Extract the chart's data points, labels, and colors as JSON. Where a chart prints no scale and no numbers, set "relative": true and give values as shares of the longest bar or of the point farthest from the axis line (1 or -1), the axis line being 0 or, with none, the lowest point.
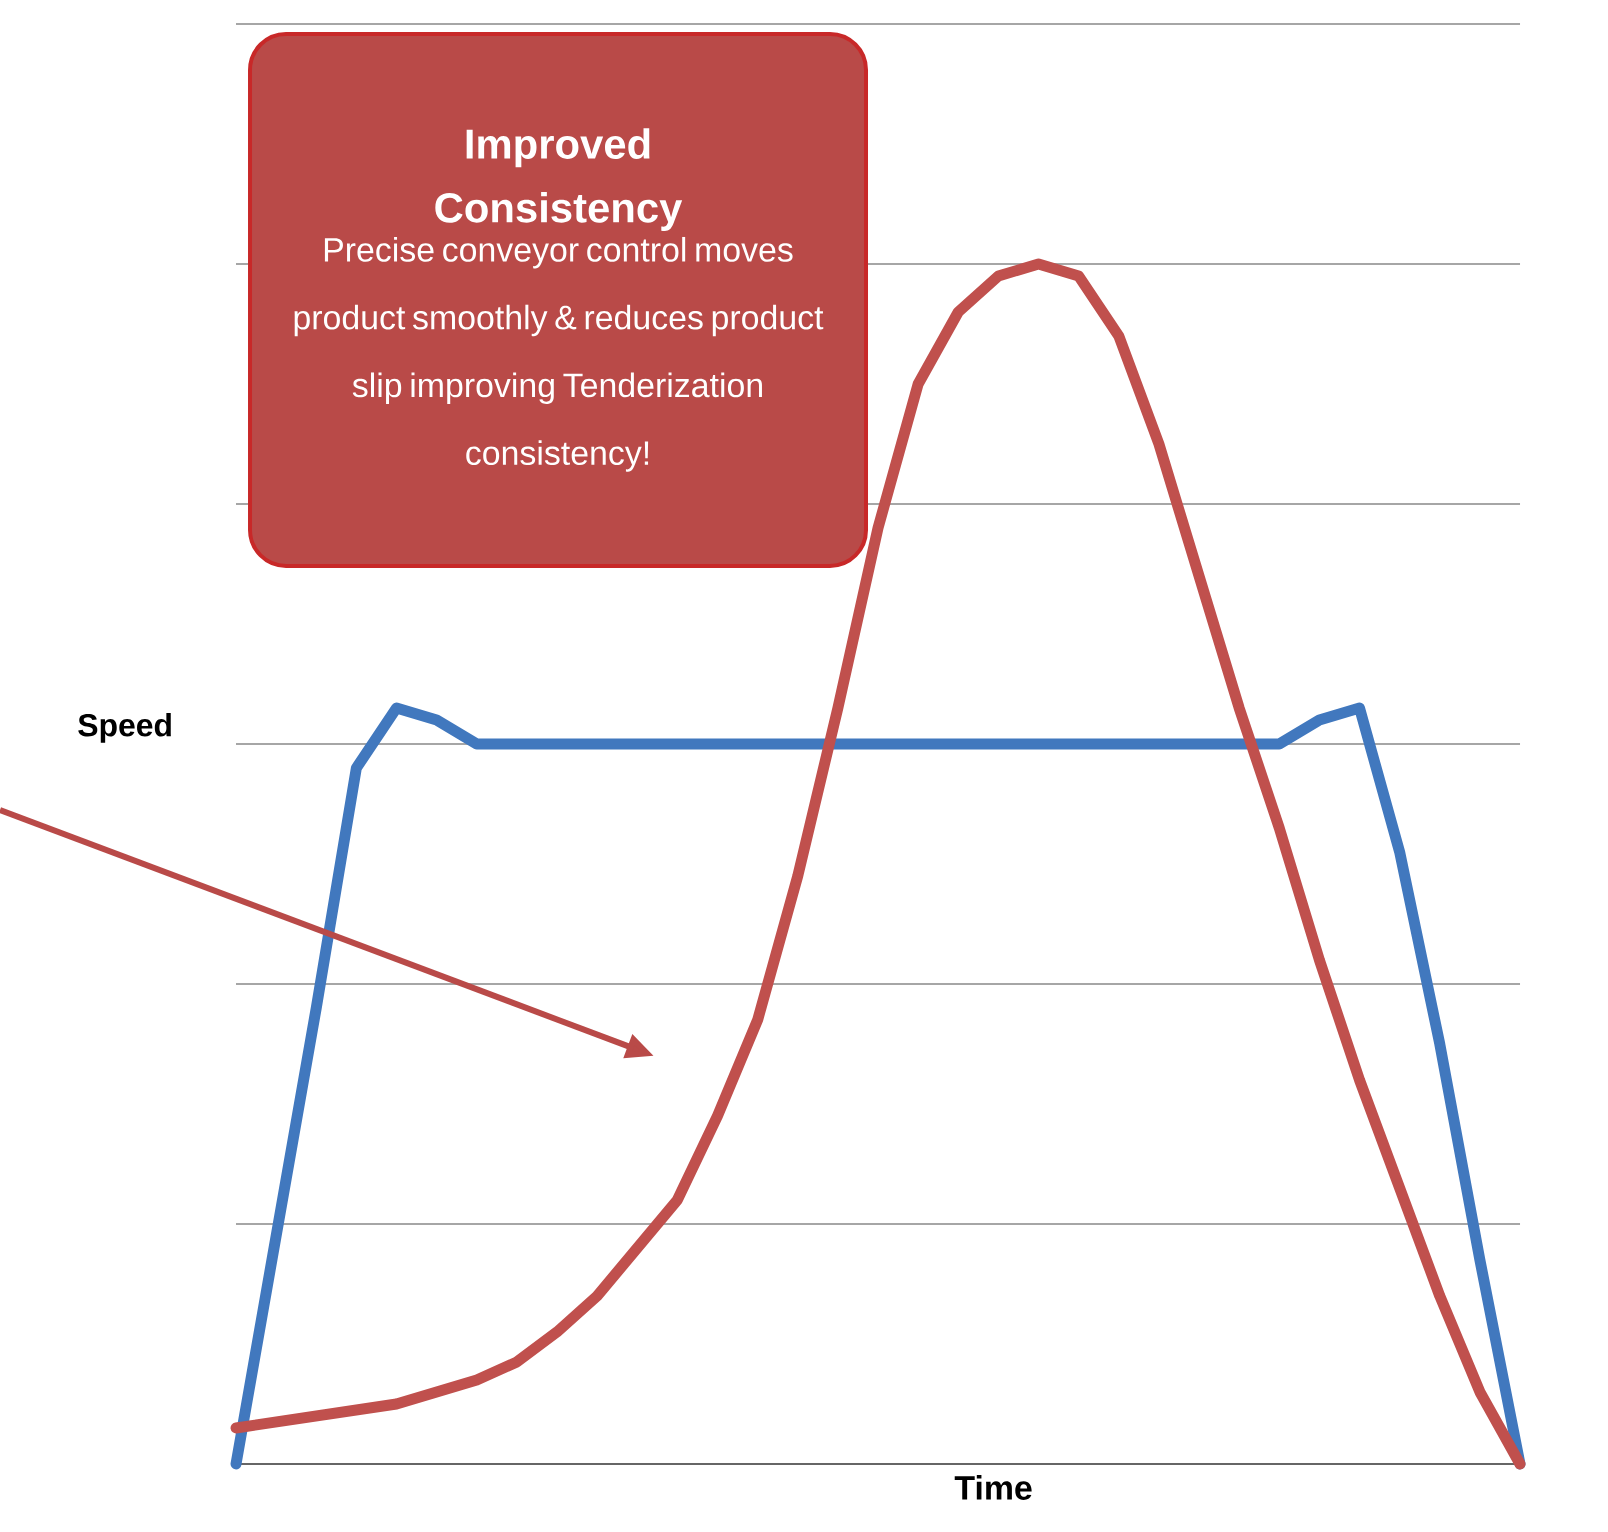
{
  "chart_data": {
    "type": "line",
    "relative": true,
    "xlabel": "Time",
    "ylabel": "Speed",
    "grid": "y",
    "marker": "none",
    "line_style": "solid",
    "categories": [
      null,
      null,
      null,
      null,
      null,
      null,
      null,
      null,
      null,
      null,
      null,
      null,
      null,
      null,
      null,
      null,
      null,
      null,
      null,
      null,
      null,
      null,
      null,
      null,
      null,
      null,
      null,
      null,
      null,
      null,
      null,
      null,
      null
    ],
    "series": [
      {
        "color": "#4178be",
        "values": [
          0,
          0.19,
          0.38,
          0.58,
          0.63,
          0.62,
          0.6,
          0.6,
          0.6,
          0.6,
          0.6,
          0.6,
          0.6,
          0.6,
          0.6,
          0.6,
          0.6,
          0.6,
          0.6,
          0.6,
          0.6,
          0.6,
          0.6,
          0.6,
          0.6,
          0.6,
          0.6,
          0.62,
          0.63,
          0.51,
          0.35,
          0.17,
          0
        ]
      },
      {
        "color": "#c0504d",
        "values": [
          0.03,
          0.035,
          0.04,
          0.045,
          0.05,
          0.06,
          0.07,
          0.085,
          0.11,
          0.14,
          0.18,
          0.22,
          0.29,
          0.37,
          0.49,
          0.63,
          0.78,
          0.9,
          0.96,
          0.99,
          1.0,
          0.99,
          0.94,
          0.85,
          0.74,
          0.63,
          0.53,
          0.42,
          0.32,
          0.23,
          0.14,
          0.06,
          0
        ]
      }
    ],
    "annotations": [
      "Improved Consistency",
      "Precise conveyor control moves product smoothly & reduces product slip improving Tenderization consistency!"
    ]
  }
}
